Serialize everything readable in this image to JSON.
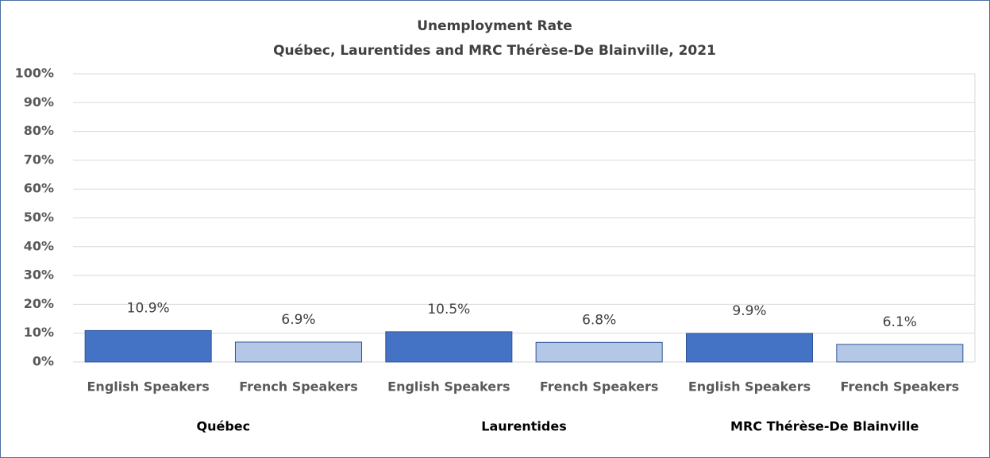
{
  "chart_data": {
    "type": "bar",
    "title": "Unemployment Rate",
    "subtitle": "Québec, Laurentides and MRC Thérèse-De Blainville,  2021",
    "categories": [
      "English Speakers",
      "French Speakers",
      "English Speakers",
      "French Speakers",
      "English Speakers",
      "French Speakers"
    ],
    "groups": [
      "Québec",
      "Laurentides",
      "MRC Thérèse-De Blainville"
    ],
    "values": [
      10.9,
      6.9,
      10.5,
      6.8,
      9.9,
      6.1
    ],
    "value_labels": [
      "10.9%",
      "6.9%",
      "10.5%",
      "6.8%",
      "9.9%",
      "6.1%"
    ],
    "colors": [
      "#4472c4",
      "#b4c7e7",
      "#4472c4",
      "#b4c7e7",
      "#4472c4",
      "#b4c7e7"
    ],
    "ylim": [
      0,
      100
    ],
    "yticks": [
      {
        "value": 0,
        "label": "0%"
      },
      {
        "value": 10,
        "label": "10%"
      },
      {
        "value": 20,
        "label": "20%"
      },
      {
        "value": 30,
        "label": "30%"
      },
      {
        "value": 40,
        "label": "40%"
      },
      {
        "value": 50,
        "label": "50%"
      },
      {
        "value": 60,
        "label": "60%"
      },
      {
        "value": 70,
        "label": "70%"
      },
      {
        "value": 80,
        "label": "80%"
      },
      {
        "value": 90,
        "label": "90%"
      },
      {
        "value": 100,
        "label": "100%"
      }
    ],
    "grid": true
  }
}
